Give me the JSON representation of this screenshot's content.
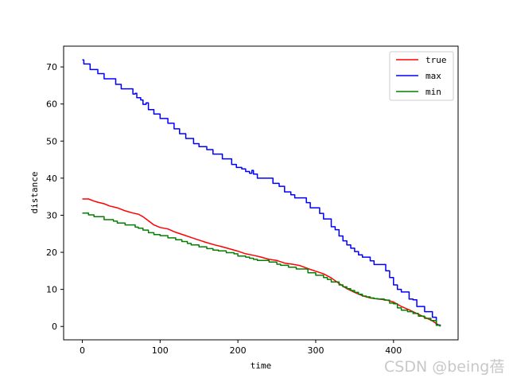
{
  "watermark": "CSDN @being蓓",
  "chart_data": {
    "type": "line",
    "title": "",
    "xlabel": "time",
    "ylabel": "distance",
    "xlim": [
      -24,
      483
    ],
    "ylim": [
      -3.6,
      75.6
    ],
    "x_ticks": [
      0,
      100,
      200,
      300,
      400
    ],
    "y_ticks": [
      0,
      10,
      20,
      30,
      40,
      50,
      60,
      70
    ],
    "grid": false,
    "legend_position": "top-right",
    "series": [
      {
        "name": "true",
        "color": "#ff0000",
        "step": false,
        "points": [
          [
            0,
            34.4
          ],
          [
            8,
            34.4
          ],
          [
            15,
            33.8
          ],
          [
            20,
            33.5
          ],
          [
            28,
            33.1
          ],
          [
            35,
            32.5
          ],
          [
            45,
            32.0
          ],
          [
            55,
            31.2
          ],
          [
            65,
            30.6
          ],
          [
            72,
            30.3
          ],
          [
            78,
            29.6
          ],
          [
            85,
            28.5
          ],
          [
            92,
            27.4
          ],
          [
            100,
            26.7
          ],
          [
            110,
            26.3
          ],
          [
            120,
            25.4
          ],
          [
            130,
            24.7
          ],
          [
            140,
            24.0
          ],
          [
            150,
            23.3
          ],
          [
            160,
            22.6
          ],
          [
            170,
            22.0
          ],
          [
            180,
            21.5
          ],
          [
            190,
            20.9
          ],
          [
            200,
            20.3
          ],
          [
            210,
            19.6
          ],
          [
            220,
            19.2
          ],
          [
            230,
            18.7
          ],
          [
            240,
            18.1
          ],
          [
            250,
            17.8
          ],
          [
            260,
            17.1
          ],
          [
            270,
            16.8
          ],
          [
            280,
            16.4
          ],
          [
            290,
            15.6
          ],
          [
            300,
            14.9
          ],
          [
            310,
            14.2
          ],
          [
            320,
            13.1
          ],
          [
            330,
            11.6
          ],
          [
            340,
            10.2
          ],
          [
            350,
            9.2
          ],
          [
            360,
            8.3
          ],
          [
            370,
            7.7
          ],
          [
            380,
            7.4
          ],
          [
            390,
            7.2
          ],
          [
            400,
            6.6
          ],
          [
            410,
            5.4
          ],
          [
            420,
            4.5
          ],
          [
            430,
            3.5
          ],
          [
            440,
            2.5
          ],
          [
            450,
            1.5
          ],
          [
            455,
            0.8
          ],
          [
            460,
            0.1
          ]
        ]
      },
      {
        "name": "max",
        "color": "#0000ff",
        "step": true,
        "points": [
          [
            0,
            71.9
          ],
          [
            2,
            70.8
          ],
          [
            10,
            69.3
          ],
          [
            20,
            68.2
          ],
          [
            28,
            66.8
          ],
          [
            43,
            65.3
          ],
          [
            50,
            64.1
          ],
          [
            65,
            62.7
          ],
          [
            68,
            62.9
          ],
          [
            70,
            61.7
          ],
          [
            75,
            61.1
          ],
          [
            78,
            59.9
          ],
          [
            82,
            60.3
          ],
          [
            85,
            58.5
          ],
          [
            92,
            57.3
          ],
          [
            100,
            56.1
          ],
          [
            110,
            54.8
          ],
          [
            118,
            53.3
          ],
          [
            125,
            52.0
          ],
          [
            133,
            50.7
          ],
          [
            143,
            49.3
          ],
          [
            150,
            48.5
          ],
          [
            160,
            47.7
          ],
          [
            168,
            46.5
          ],
          [
            180,
            45.2
          ],
          [
            192,
            43.7
          ],
          [
            198,
            42.9
          ],
          [
            205,
            42.5
          ],
          [
            210,
            41.8
          ],
          [
            215,
            41.3
          ],
          [
            218,
            42.1
          ],
          [
            220,
            41.1
          ],
          [
            225,
            40.0
          ],
          [
            245,
            38.6
          ],
          [
            253,
            37.8
          ],
          [
            260,
            36.3
          ],
          [
            268,
            35.5
          ],
          [
            273,
            34.7
          ],
          [
            288,
            33.4
          ],
          [
            293,
            32.0
          ],
          [
            305,
            30.5
          ],
          [
            310,
            29.0
          ],
          [
            320,
            26.9
          ],
          [
            325,
            26.1
          ],
          [
            330,
            24.4
          ],
          [
            335,
            23.1
          ],
          [
            340,
            22.0
          ],
          [
            345,
            21.1
          ],
          [
            350,
            20.2
          ],
          [
            355,
            19.3
          ],
          [
            360,
            18.7
          ],
          [
            370,
            17.7
          ],
          [
            375,
            16.7
          ],
          [
            390,
            15.0
          ],
          [
            395,
            13.2
          ],
          [
            400,
            11.2
          ],
          [
            405,
            10.0
          ],
          [
            410,
            9.3
          ],
          [
            420,
            7.4
          ],
          [
            425,
            7.2
          ],
          [
            430,
            5.4
          ],
          [
            440,
            4.0
          ],
          [
            450,
            2.5
          ],
          [
            455,
            0.4
          ],
          [
            460,
            0.1
          ]
        ]
      },
      {
        "name": "min",
        "color": "#008000",
        "step": true,
        "points": [
          [
            0,
            30.6
          ],
          [
            8,
            30.1
          ],
          [
            15,
            29.6
          ],
          [
            28,
            28.8
          ],
          [
            40,
            28.4
          ],
          [
            45,
            27.9
          ],
          [
            55,
            27.4
          ],
          [
            68,
            26.8
          ],
          [
            72,
            26.5
          ],
          [
            78,
            26.0
          ],
          [
            85,
            25.3
          ],
          [
            92,
            24.8
          ],
          [
            100,
            24.5
          ],
          [
            110,
            23.9
          ],
          [
            120,
            23.4
          ],
          [
            128,
            22.9
          ],
          [
            135,
            22.4
          ],
          [
            140,
            22.0
          ],
          [
            150,
            21.5
          ],
          [
            160,
            21.0
          ],
          [
            168,
            20.6
          ],
          [
            175,
            20.4
          ],
          [
            185,
            19.9
          ],
          [
            195,
            19.6
          ],
          [
            200,
            19.0
          ],
          [
            210,
            18.7
          ],
          [
            215,
            18.4
          ],
          [
            220,
            18.1
          ],
          [
            225,
            17.8
          ],
          [
            240,
            17.4
          ],
          [
            250,
            16.8
          ],
          [
            255,
            16.5
          ],
          [
            265,
            16.0
          ],
          [
            275,
            15.5
          ],
          [
            290,
            14.5
          ],
          [
            300,
            13.8
          ],
          [
            310,
            13.2
          ],
          [
            315,
            12.7
          ],
          [
            320,
            12.0
          ],
          [
            330,
            11.2
          ],
          [
            335,
            10.7
          ],
          [
            340,
            10.2
          ],
          [
            345,
            9.7
          ],
          [
            350,
            9.2
          ],
          [
            355,
            8.7
          ],
          [
            360,
            8.2
          ],
          [
            365,
            8.0
          ],
          [
            370,
            7.7
          ],
          [
            375,
            7.5
          ],
          [
            380,
            7.4
          ],
          [
            388,
            7.1
          ],
          [
            395,
            6.3
          ],
          [
            400,
            6.1
          ],
          [
            405,
            5.0
          ],
          [
            410,
            4.4
          ],
          [
            418,
            4.0
          ],
          [
            425,
            3.5
          ],
          [
            432,
            2.8
          ],
          [
            440,
            2.2
          ],
          [
            448,
            1.6
          ],
          [
            455,
            0.3
          ],
          [
            460,
            0.0
          ]
        ]
      }
    ]
  }
}
